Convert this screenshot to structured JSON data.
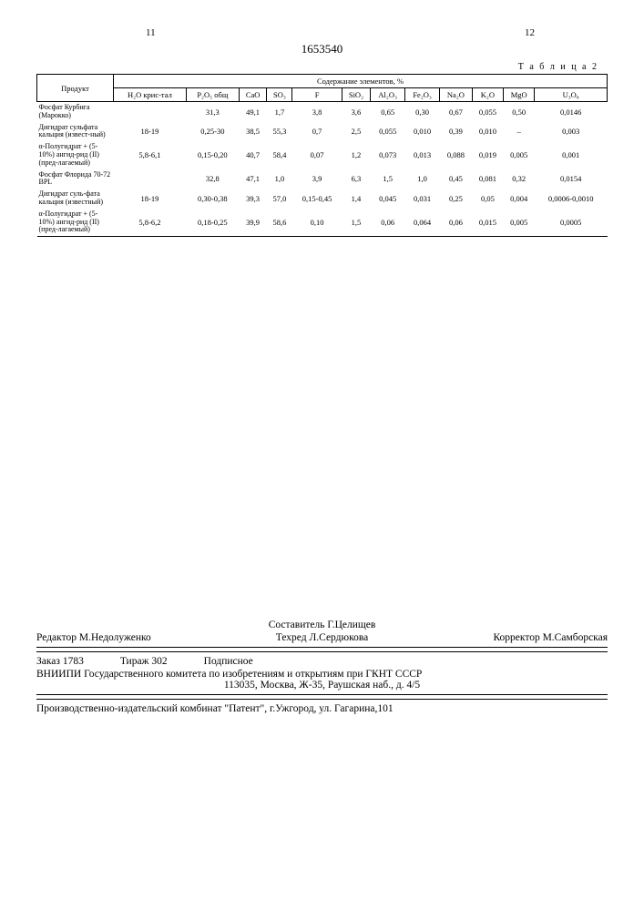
{
  "header": {
    "left_page": "11",
    "doc_number": "1653540",
    "right_page": "12"
  },
  "table": {
    "label": "Т а б л и ц а  2",
    "product_header": "Продукт",
    "group_header": "Содержание элементов, %",
    "columns": [
      "H₂O крис-тал",
      "P₂O₅ общ",
      "CaO",
      "SO₃",
      "F",
      "SiO₂",
      "Al₂O₃",
      "Fe₂O₃",
      "Na₂O",
      "K₂O",
      "MgO",
      "U₃O₈"
    ],
    "rows": [
      {
        "product": "Фосфат Курбига (Марокко)",
        "cells": [
          "",
          "31,3",
          "49,1",
          "1,7",
          "3,8",
          "3,6",
          "0,65",
          "0,30",
          "0,67",
          "0,055",
          "0,50",
          "0,0146"
        ]
      },
      {
        "product": "Дигидрат сульфата кальция (извест-ный)",
        "cells": [
          "18-19",
          "0,25-30",
          "38,5",
          "55,3",
          "0,7",
          "2,5",
          "0,055",
          "0,010",
          "0,39",
          "0,010",
          "–",
          "0,003"
        ]
      },
      {
        "product": "α-Полугидрат + (5-10%) ангид-рид (II) (пред-лагаемый)",
        "cells": [
          "5,8-6,1",
          "0,15-0,20",
          "40,7",
          "58,4",
          "0,07",
          "1,2",
          "0,073",
          "0,013",
          "0,088",
          "0,019",
          "0,005",
          "0,001"
        ]
      },
      {
        "product": "Фосфат Флорида 70-72 BPL",
        "cells": [
          "",
          "32,8",
          "47,1",
          "1,0",
          "3,9",
          "6,3",
          "1,5",
          "1,0",
          "0,45",
          "0,081",
          "0,32",
          "0,0154"
        ]
      },
      {
        "product": "Дигидрат суль-фата кальция (известный)",
        "cells": [
          "18-19",
          "0,30-0,38",
          "39,3",
          "57,0",
          "0,15-0,45",
          "1,4",
          "0,045",
          "0,031",
          "0,25",
          "0,05",
          "0,004",
          "0,0006-0,0010"
        ]
      },
      {
        "product": "α-Полугидрат + (5-10%) ангид-рид (II) (пред-лагаемый)",
        "cells": [
          "5,8-6,2",
          "0,18-0,25",
          "39,9",
          "58,6",
          "0,10",
          "1,5",
          "0,06",
          "0,064",
          "0,06",
          "0,015",
          "0,005",
          "0,0005"
        ]
      }
    ]
  },
  "footer": {
    "compiler_label": "Составитель",
    "compiler_name": "Г.Целищев",
    "editor_label": "Редактор",
    "editor_name": "М.Недолуженко",
    "tech_label": "Техред",
    "tech_name": "Л.Сердюкова",
    "proof_label": "Корректор",
    "proof_name": "М.Самборская",
    "order_label": "Заказ",
    "order_num": "1783",
    "edition_label": "Тираж",
    "edition_num": "302",
    "signed": "Подписное",
    "org_line": "ВНИИПИ Государственного комитета по изобретениям и открытиям при ГКНТ СССР",
    "address": "113035, Москва, Ж-35, Раушская наб., д. 4/5",
    "print_line": "Производственно-издательский комбинат \"Патент\", г.Ужгород, ул. Гагарина,101"
  }
}
